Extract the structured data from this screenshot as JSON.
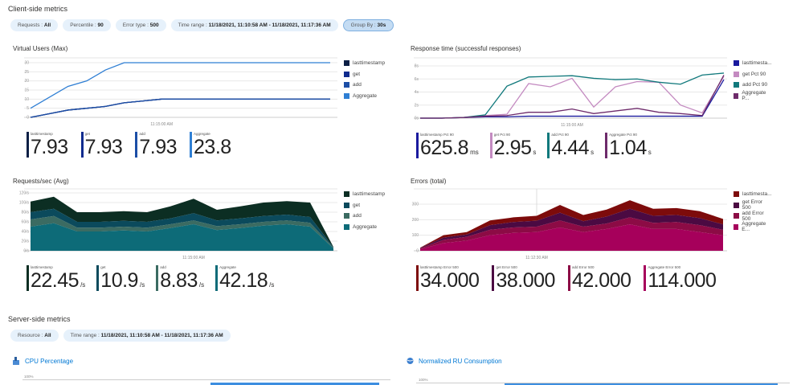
{
  "client": {
    "title": "Client-side metrics",
    "filters": [
      {
        "label": "Requests : ",
        "value": "All"
      },
      {
        "label": "Percentile : ",
        "value": "90"
      },
      {
        "label": "Error type : ",
        "value": "500"
      },
      {
        "label": "Time range : ",
        "value": "11/18/2021, 11:10:58 AM - 11/18/2021, 11:17:36 AM"
      },
      {
        "label": "Group By : ",
        "value": "30s"
      }
    ]
  },
  "server": {
    "title": "Server-side metrics",
    "filters": [
      {
        "label": "Resource : ",
        "value": "All"
      },
      {
        "label": "Time range : ",
        "value": "11/18/2021, 11:10:58 AM - 11/18/2021, 11:17:36 AM"
      }
    ],
    "cpu": {
      "title": "CPU Percentage",
      "axis_top": "100%"
    },
    "ru": {
      "title": "Normalized RU Consumption",
      "axis_top": "100%"
    }
  },
  "chart_data": [
    {
      "id": "vu",
      "type": "line",
      "title": "Virtual Users (Max)",
      "ylim": [
        0,
        30
      ],
      "yticks": [
        "0",
        "5",
        "10",
        "15",
        "20",
        "25",
        "30"
      ],
      "grid": true,
      "xtick": "11:15:00 AM",
      "xtick_index": 7,
      "legend": "right",
      "series": [
        {
          "name": "lasttimestamp",
          "color": "#0b1f45",
          "values": [
            0,
            2,
            4,
            5,
            6,
            8,
            9,
            10,
            10,
            10,
            10,
            10,
            10,
            10,
            10,
            10,
            10
          ]
        },
        {
          "name": "get",
          "color": "#0f2b8e",
          "values": [
            0,
            2,
            4,
            5,
            6,
            8,
            9,
            10,
            10,
            10,
            10,
            10,
            10,
            10,
            10,
            10,
            10
          ]
        },
        {
          "name": "add",
          "color": "#1c4ea6",
          "values": [
            0,
            2,
            4,
            5,
            6,
            8,
            9,
            10,
            10,
            10,
            10,
            10,
            10,
            10,
            10,
            10,
            10
          ]
        },
        {
          "name": "Aggregate",
          "color": "#2f7fd4",
          "values": [
            5,
            11,
            17,
            20,
            26,
            30,
            30,
            30,
            30,
            30,
            30,
            30,
            30,
            30,
            30,
            30,
            30
          ]
        }
      ],
      "stats": [
        {
          "label": "lasttimestamp",
          "value": "7.93",
          "unit": ""
        },
        {
          "label": "get",
          "value": "7.93",
          "unit": ""
        },
        {
          "label": "add",
          "value": "7.93",
          "unit": ""
        },
        {
          "label": "Aggregate",
          "value": "23.8",
          "unit": ""
        }
      ]
    },
    {
      "id": "rt",
      "type": "line",
      "title": "Response time (successful responses)",
      "ylim": [
        0,
        8
      ],
      "yticks": [
        "0s",
        "2s",
        "4s",
        "6s",
        "8s"
      ],
      "grid": true,
      "xtick": "11:15:00 AM",
      "xtick_index": 7,
      "legend": "right",
      "series": [
        {
          "name": "lasttimesta...",
          "color": "#1a1a9e",
          "values": [
            0,
            0,
            0.1,
            0.2,
            0.2,
            0.3,
            0.3,
            0.3,
            0.3,
            0.3,
            0.3,
            0.3,
            0.3,
            0.3,
            5.9
          ]
        },
        {
          "name": "get Pct 90",
          "color": "#c48bc1",
          "values": [
            0,
            0,
            0.1,
            0.4,
            0.6,
            5.3,
            4.8,
            6.1,
            1.7,
            4.8,
            5.6,
            5.5,
            2.0,
            0.8,
            6.4
          ]
        },
        {
          "name": "add Pct 90",
          "color": "#11797c",
          "values": [
            0,
            0,
            0.1,
            0.5,
            4.9,
            6.3,
            6.4,
            6.5,
            6.1,
            5.9,
            6.0,
            5.5,
            5.2,
            6.6,
            6.9
          ]
        },
        {
          "name": "Aggregate P...",
          "color": "#6e2b6b",
          "values": [
            0,
            0,
            0.1,
            0.3,
            0.4,
            0.9,
            0.9,
            1.4,
            0.7,
            1.1,
            1.5,
            0.9,
            0.7,
            0.4,
            6.6
          ]
        }
      ],
      "stats": [
        {
          "label": "lasttimestamp Pct 90",
          "value": "625.8",
          "unit": "ms"
        },
        {
          "label": "get Pct 90",
          "value": "2.95",
          "unit": "s"
        },
        {
          "label": "add Pct 90",
          "value": "4.44",
          "unit": "s"
        },
        {
          "label": "Aggregate Pct 90",
          "value": "1.04",
          "unit": "s"
        }
      ]
    },
    {
      "id": "rps",
      "type": "area",
      "stacked": true,
      "title": "Requests/sec (Avg)",
      "ylim": [
        0,
        120
      ],
      "yticks": [
        "0/s",
        "20/s",
        "40/s",
        "60/s",
        "80/s",
        "100/s",
        "120/s"
      ],
      "grid": true,
      "xtick": "11:15:00 AM",
      "xtick_index": 7,
      "legend": "right",
      "series": [
        {
          "name": "lasttimestamp",
          "color": "#0c2e23",
          "values": [
            22,
            25,
            20,
            20,
            20,
            20,
            25,
            30,
            22,
            25,
            28,
            28,
            30,
            1
          ]
        },
        {
          "name": "get",
          "color": "#0b4a5c",
          "values": [
            15,
            15,
            12,
            12,
            12,
            12,
            12,
            15,
            12,
            12,
            12,
            12,
            12,
            1
          ]
        },
        {
          "name": "add",
          "color": "#3b6b62",
          "values": [
            15,
            15,
            8,
            8,
            8,
            8,
            8,
            8,
            8,
            8,
            8,
            8,
            8,
            1
          ]
        },
        {
          "name": "Aggregate",
          "color": "#0d6b78",
          "values": [
            50,
            57,
            40,
            40,
            42,
            40,
            47,
            55,
            43,
            47,
            52,
            55,
            50,
            5
          ]
        }
      ],
      "stats": [
        {
          "label": "lasttimestamp",
          "value": "22.45",
          "unit": "/s"
        },
        {
          "label": "get",
          "value": "10.9",
          "unit": "/s"
        },
        {
          "label": "add",
          "value": "8.83",
          "unit": "/s"
        },
        {
          "label": "Aggregate",
          "value": "42.18",
          "unit": "/s"
        }
      ]
    },
    {
      "id": "err",
      "type": "area",
      "stacked": true,
      "title": "Errors (total)",
      "ylim": [
        0,
        300
      ],
      "yticks": [
        "0",
        "100",
        "200",
        "300"
      ],
      "grid": true,
      "xtick": "11:12:30 AM",
      "xtick_index": 5,
      "legend": "right",
      "series": [
        {
          "name": "lasttimesta...",
          "color": "#7d0b0b",
          "values": [
            2,
            15,
            15,
            30,
            30,
            32,
            50,
            40,
            45,
            55,
            45,
            45,
            45,
            35
          ]
        },
        {
          "name": "get Error 500",
          "color": "#4b0a42",
          "values": [
            3,
            15,
            15,
            30,
            35,
            38,
            50,
            35,
            45,
            55,
            45,
            45,
            45,
            35
          ]
        },
        {
          "name": "add Error 500",
          "color": "#8c0b45",
          "values": [
            5,
            20,
            25,
            35,
            35,
            35,
            45,
            35,
            35,
            45,
            40,
            45,
            45,
            35
          ]
        },
        {
          "name": "Aggregate E...",
          "color": "#a6005b",
          "values": [
            10,
            50,
            65,
            100,
            115,
            120,
            150,
            120,
            140,
            170,
            140,
            140,
            120,
            100
          ]
        }
      ],
      "stats": [
        {
          "label": "lasttimestamp Error 500",
          "value": "34.000",
          "unit": ""
        },
        {
          "label": "get Error 500",
          "value": "38.000",
          "unit": ""
        },
        {
          "label": "add Error 500",
          "value": "42.000",
          "unit": ""
        },
        {
          "label": "Aggregate Error 500",
          "value": "114.000",
          "unit": ""
        }
      ]
    }
  ]
}
